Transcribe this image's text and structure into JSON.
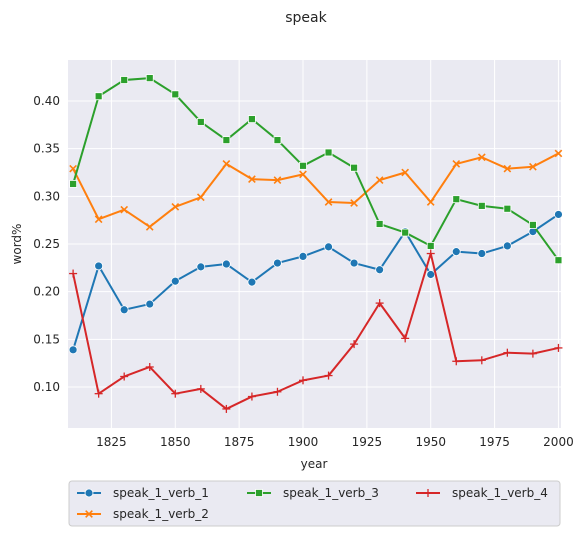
{
  "chart_data": {
    "type": "line",
    "title": "speak",
    "xlabel": "year",
    "ylabel": "word%",
    "xlim": [
      1808,
      2001
    ],
    "ylim": [
      0.057,
      0.443
    ],
    "x_ticks": [
      1825,
      1850,
      1875,
      1900,
      1925,
      1950,
      1975,
      2000
    ],
    "y_ticks": [
      0.1,
      0.15,
      0.2,
      0.25,
      0.3,
      0.35,
      0.4
    ],
    "grid": true,
    "legend_position": "bottom",
    "x": [
      1810,
      1820,
      1830,
      1840,
      1850,
      1860,
      1870,
      1880,
      1890,
      1900,
      1910,
      1920,
      1930,
      1940,
      1950,
      1960,
      1970,
      1980,
      1990,
      2000
    ],
    "series": [
      {
        "name": "speak_1_verb_1",
        "color": "#1f77b4",
        "marker": "circle",
        "values": [
          0.139,
          0.227,
          0.181,
          0.187,
          0.211,
          0.226,
          0.229,
          0.21,
          0.23,
          0.237,
          0.247,
          0.23,
          0.223,
          0.263,
          0.218,
          0.242,
          0.24,
          0.248,
          0.263,
          0.281
        ]
      },
      {
        "name": "speak_1_verb_2",
        "color": "#ff7f0e",
        "marker": "x",
        "values": [
          0.329,
          0.276,
          0.286,
          0.268,
          0.289,
          0.299,
          0.334,
          0.318,
          0.317,
          0.323,
          0.294,
          0.293,
          0.317,
          0.325,
          0.294,
          0.334,
          0.341,
          0.329,
          0.331,
          0.345
        ]
      },
      {
        "name": "speak_1_verb_3",
        "color": "#2ca02c",
        "marker": "square",
        "values": [
          0.313,
          0.405,
          0.422,
          0.424,
          0.407,
          0.378,
          0.359,
          0.381,
          0.359,
          0.332,
          0.346,
          0.33,
          0.271,
          0.262,
          0.248,
          0.297,
          0.29,
          0.287,
          0.27,
          0.233
        ]
      },
      {
        "name": "speak_1_verb_4",
        "color": "#d62728",
        "marker": "plus",
        "values": [
          0.219,
          0.093,
          0.111,
          0.121,
          0.093,
          0.098,
          0.077,
          0.09,
          0.095,
          0.107,
          0.112,
          0.145,
          0.188,
          0.151,
          0.24,
          0.127,
          0.128,
          0.136,
          0.135,
          0.141
        ]
      }
    ]
  }
}
